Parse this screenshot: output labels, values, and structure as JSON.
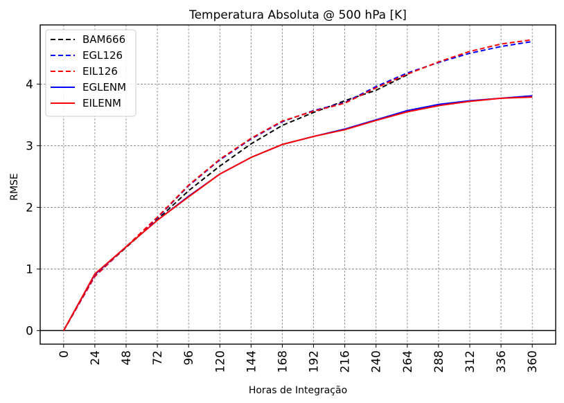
{
  "chart_data": {
    "type": "line",
    "title": "Temperatura Absoluta @ 500 hPa [K]",
    "xlabel": "Horas de Integração",
    "ylabel": "RMSE",
    "x": [
      0,
      24,
      48,
      72,
      96,
      120,
      144,
      168,
      192,
      216,
      240,
      264,
      288,
      312,
      336,
      360
    ],
    "xticks": [
      "0",
      "24",
      "48",
      "72",
      "96",
      "120",
      "144",
      "168",
      "192",
      "216",
      "240",
      "264",
      "288",
      "312",
      "336",
      "360"
    ],
    "yticks": [
      "0",
      "1",
      "2",
      "3",
      "4"
    ],
    "ylim": [
      -0.22,
      4.96
    ],
    "xlim": [
      -18,
      378
    ],
    "grid": true,
    "zero_line": true,
    "legend_position": "top-left",
    "series": [
      {
        "name": "BAM666",
        "color": "#000000",
        "style": "dashed",
        "values": [
          0,
          0.89,
          1.35,
          1.8,
          2.27,
          2.67,
          3.03,
          3.33,
          3.54,
          3.73,
          3.9,
          4.15
        ]
      },
      {
        "name": "EGL126",
        "color": "#0000ff",
        "style": "dashed",
        "values": [
          0,
          0.88,
          1.36,
          1.83,
          2.35,
          2.77,
          3.11,
          3.39,
          3.57,
          3.7,
          3.96,
          4.18,
          4.35,
          4.5,
          4.61,
          4.69
        ]
      },
      {
        "name": "EIL126",
        "color": "#ff0000",
        "style": "dashed",
        "values": [
          0,
          0.88,
          1.36,
          1.84,
          2.36,
          2.78,
          3.12,
          3.4,
          3.56,
          3.69,
          3.94,
          4.16,
          4.36,
          4.53,
          4.65,
          4.72
        ]
      },
      {
        "name": "EGLENM",
        "color": "#0000ff",
        "style": "solid",
        "values": [
          0,
          0.91,
          1.36,
          1.79,
          2.18,
          2.54,
          2.81,
          3.02,
          3.15,
          3.27,
          3.42,
          3.57,
          3.67,
          3.73,
          3.77,
          3.81
        ]
      },
      {
        "name": "EILENM",
        "color": "#ff0000",
        "style": "solid",
        "values": [
          0,
          0.92,
          1.36,
          1.79,
          2.17,
          2.54,
          2.81,
          3.02,
          3.15,
          3.26,
          3.41,
          3.55,
          3.65,
          3.72,
          3.77,
          3.79
        ]
      }
    ]
  }
}
